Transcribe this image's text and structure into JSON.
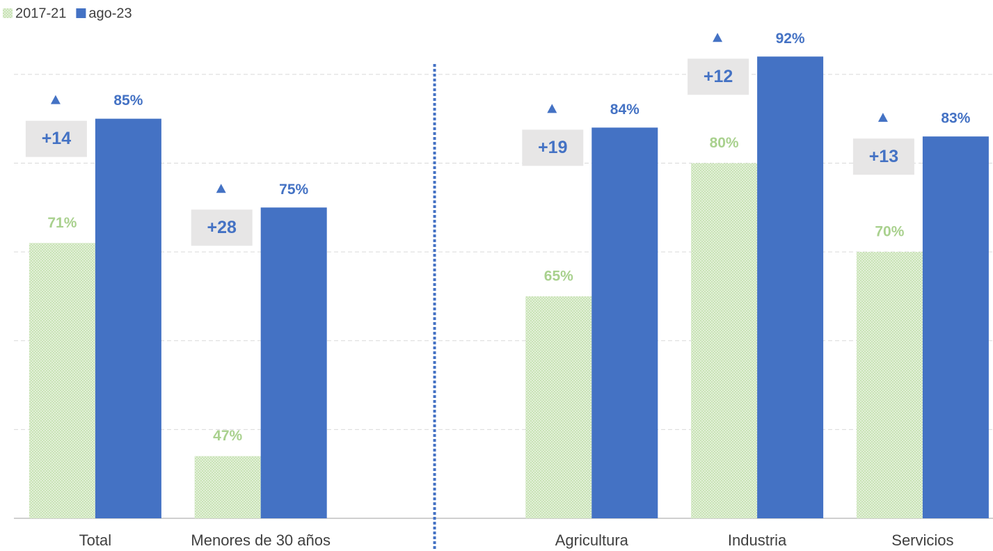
{
  "chart_data": {
    "type": "bar",
    "categories": [
      "Total",
      "Menores de 30 años",
      null,
      "Agricultura",
      "Industria",
      "Servicios"
    ],
    "series": [
      {
        "name": "2017-21",
        "color": "#a9d18e",
        "values": [
          71,
          47,
          null,
          65,
          80,
          70
        ],
        "value_labels": [
          "71%",
          "47%",
          null,
          "65%",
          "80%",
          "70%"
        ]
      },
      {
        "name": "ago-23",
        "color": "#4472c4",
        "values": [
          85,
          75,
          null,
          84,
          92,
          83
        ],
        "value_labels": [
          "85%",
          "75%",
          null,
          "84%",
          "92%",
          "83%"
        ]
      }
    ],
    "delta_labels": [
      "+14",
      "+28",
      null,
      "+19",
      "+12",
      "+13"
    ],
    "ylim": [
      40,
      95
    ],
    "yticks": [
      40,
      50,
      60,
      70,
      80,
      90
    ],
    "grid": true,
    "legend": "top-left"
  }
}
